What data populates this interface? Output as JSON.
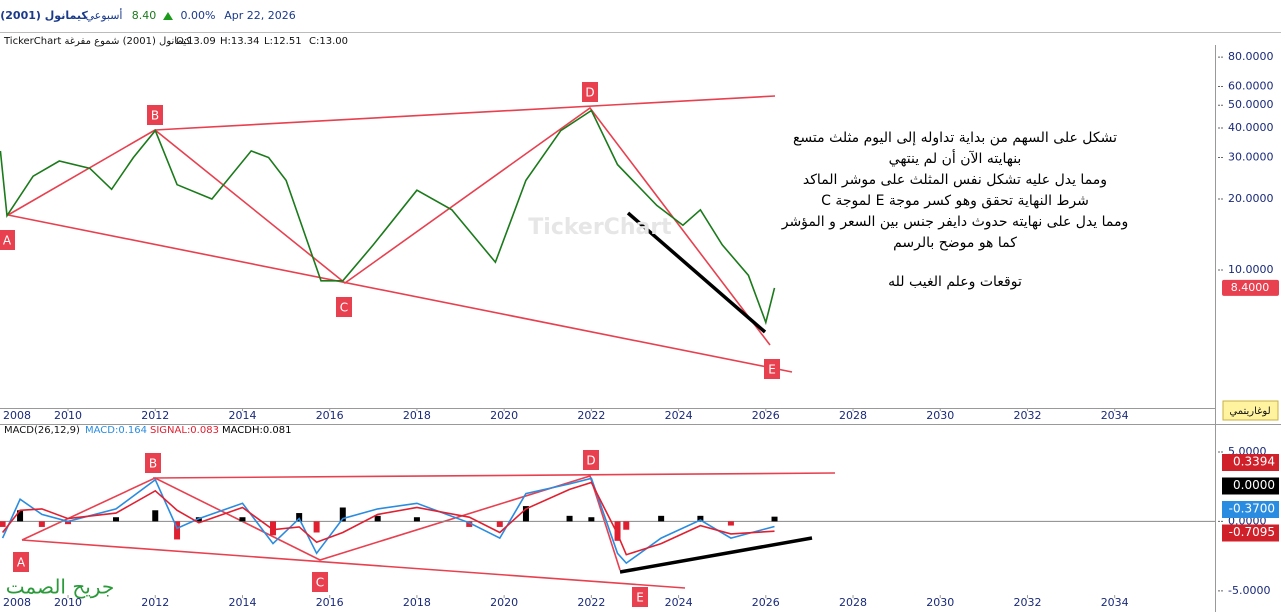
{
  "header": {
    "symbol": "كيمانول (2001)",
    "period": "أسبوعي",
    "price": "8.40",
    "change": "0.00%",
    "date": "Apr 22, 2026",
    "info": "TickerChart كيمانول (2001) شموع مفرغة",
    "ohlc": [
      "O:13.09",
      "H:13.34",
      "L:12.51",
      "C:13.00"
    ],
    "scale_button": "لوغاريتمي",
    "signature": "جريح الصمت"
  },
  "chart_data": [
    {
      "type": "line",
      "log_scale": true,
      "color": "#1b7a1b",
      "watermark": "TickerChart",
      "x": [
        2008.45,
        2008.6,
        2009.2,
        2009.8,
        2010.5,
        2011.0,
        2011.5,
        2012.0,
        2012.5,
        2013.3,
        2014.2,
        2014.6,
        2015.0,
        2015.8,
        2016.3,
        2017.0,
        2018.0,
        2018.8,
        2019.8,
        2020.5,
        2021.3,
        2022.0,
        2022.6,
        2023.5,
        2024.1,
        2024.5,
        2025.0,
        2025.6,
        2026.0,
        2026.2
      ],
      "values": [
        32,
        17,
        25,
        29,
        27,
        22,
        30,
        39,
        23,
        20,
        32,
        30,
        24,
        9,
        9,
        12.8,
        21.8,
        18,
        10.8,
        24,
        39,
        47.5,
        28,
        18.8,
        15.5,
        18,
        12.8,
        9.5,
        6.0,
        8.4
      ],
      "xlim": [
        2008.44,
        2036.3
      ],
      "xticks": [
        2008,
        2010,
        2012,
        2014,
        2016,
        2018,
        2020,
        2022,
        2024,
        2026,
        2028,
        2030,
        2032,
        2034
      ],
      "ylim": [
        2.6,
        90
      ],
      "yticks": [
        {
          "value": 10,
          "label": "10.0000"
        },
        {
          "value": 20,
          "label": "20.0000"
        },
        {
          "value": 30,
          "label": "30.0000"
        },
        {
          "value": 40,
          "label": "40.0000"
        },
        {
          "value": 50,
          "label": "50.0000"
        },
        {
          "value": 60,
          "label": "60.0000"
        },
        {
          "value": 80,
          "label": "80.0000"
        }
      ],
      "last_label": {
        "value": 8.4,
        "label": "8.4000",
        "color": "#e8404f"
      },
      "wave_labels": [
        "A",
        "B",
        "C",
        "D",
        "E"
      ],
      "annotations": [
        "تشكل على السهم من بداية تداوله إلى اليوم مثلث متسع",
        "بنهايته الآن أن لم ينتهي",
        "ومما يدل عليه تشكل نفس المثلث على موشر الماكد",
        "شرط النهاية تحقق وهو كسر موجة E  لموجة  C",
        "ومما يدل على نهايته حدوث دايفر جنس بين السعر و المؤشر",
        "كما هو موضح بالرسم",
        "توقعات وعلم الغيب لله"
      ]
    },
    {
      "type": "line",
      "title": "MACD(26,12,9)",
      "x": [
        2008.5,
        2008.9,
        2009.4,
        2010.0,
        2011.1,
        2012.0,
        2012.5,
        2013.0,
        2014.0,
        2014.7,
        2015.3,
        2015.7,
        2016.3,
        2017.1,
        2018.0,
        2019.2,
        2019.9,
        2020.5,
        2021.5,
        2022.0,
        2022.6,
        2022.8,
        2023.6,
        2024.5,
        2025.2,
        2026.2
      ],
      "series": [
        {
          "label": "MACDH:0.081",
          "color": "#000000",
          "style": "bar",
          "values": [
            -0.4,
            0.8,
            -0.4,
            -0.2,
            0.3,
            0.8,
            -1.3,
            0.3,
            0.3,
            -1.0,
            0.6,
            -0.8,
            1.0,
            0.4,
            0.3,
            -0.4,
            -0.4,
            1.1,
            0.4,
            0.3,
            -1.4,
            -0.6,
            0.4,
            0.4,
            -0.3,
            0.34
          ]
        },
        {
          "label": "MACD:0.164",
          "color": "#2a8ce0",
          "style": "line",
          "values": [
            -1.2,
            1.6,
            0.5,
            0,
            0.9,
            3.0,
            -0.5,
            0.2,
            1.3,
            -1.6,
            0.2,
            -2.3,
            0.2,
            0.9,
            1.3,
            -0.1,
            -1.2,
            2.0,
            2.7,
            3.1,
            -2.3,
            -3.0,
            -1.2,
            0.1,
            -1.2,
            -0.37
          ]
        },
        {
          "label": "SIGNAL:0.083",
          "color": "#e02030",
          "style": "line",
          "values": [
            -0.8,
            0.8,
            0.9,
            0.2,
            0.6,
            2.2,
            0.8,
            -0.1,
            1.0,
            -0.6,
            -0.4,
            -1.5,
            -0.8,
            0.5,
            1.0,
            0.3,
            -0.8,
            0.9,
            2.3,
            2.8,
            -0.9,
            -2.4,
            -1.6,
            -0.3,
            -0.9,
            -0.7095
          ]
        }
      ],
      "xlim": [
        2008.44,
        2036.3
      ],
      "xticks": [
        2008,
        2010,
        2012,
        2014,
        2016,
        2018,
        2020,
        2022,
        2024,
        2026,
        2028,
        2030,
        2032,
        2034
      ],
      "ylim": [
        -5.3,
        5.86
      ],
      "yticks": [
        {
          "value": 5,
          "label": "5.0000"
        },
        {
          "value": 0,
          "label": "0.0000"
        },
        {
          "value": -5,
          "label": "-5.0000"
        }
      ],
      "last_labels": [
        {
          "value": 0.3394,
          "label": "0.3394",
          "color": "#d0202a"
        },
        {
          "value": 0,
          "label": "0.0000",
          "color": "#000000"
        },
        {
          "value": -0.37,
          "label": "-0.3700",
          "color": "#2a8ce0"
        },
        {
          "value": -0.7095,
          "label": "-0.7095",
          "color": "#d0202a"
        }
      ],
      "wave_labels": [
        "A",
        "B",
        "C",
        "D",
        "E"
      ]
    }
  ]
}
